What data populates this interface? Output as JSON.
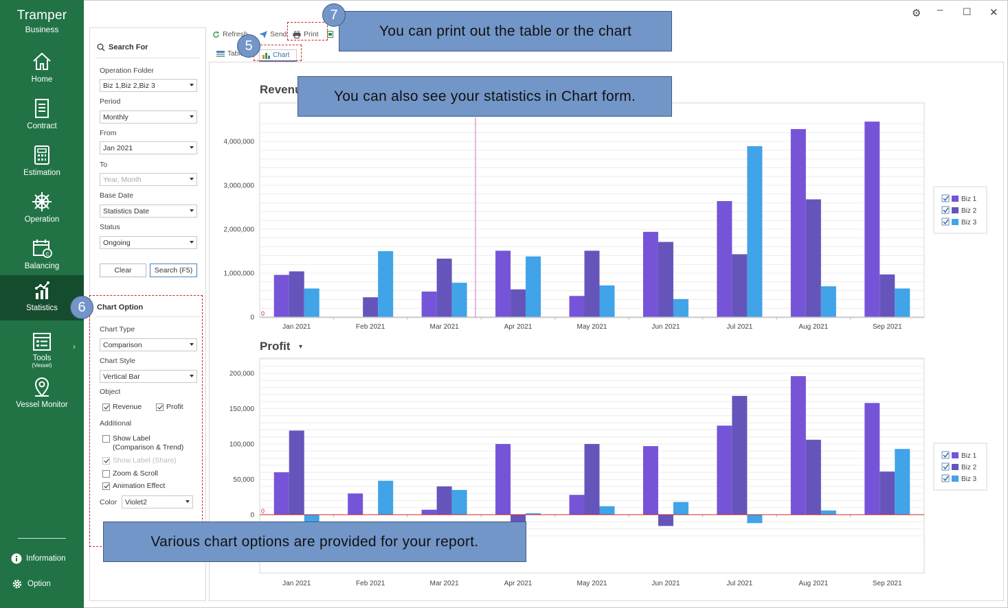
{
  "sidebar": {
    "brand_line1": "Tramper",
    "brand_line2": "Business",
    "items": [
      {
        "label": "Home",
        "icon": "home-icon"
      },
      {
        "label": "Contract",
        "icon": "document-icon"
      },
      {
        "label": "Estimation",
        "icon": "calculator-icon"
      },
      {
        "label": "Operation",
        "icon": "ship-wheel-icon"
      },
      {
        "label": "Balancing",
        "icon": "calendar-money-icon"
      },
      {
        "label": "Statistics",
        "icon": "statistics-icon",
        "active": true
      },
      {
        "label": "Tools",
        "sublabel": "(Vessel)",
        "icon": "tools-list-icon"
      },
      {
        "label": "Vessel Monitor",
        "icon": "map-pin-icon"
      }
    ],
    "information_label": "Information",
    "option_label": "Option"
  },
  "search": {
    "title": "Search For",
    "operation_folder_label": "Operation Folder",
    "operation_folder_value": "Biz 1,Biz 2,Biz 3",
    "period_label": "Period",
    "period_value": "Monthly",
    "from_label": "From",
    "from_value": "Jan 2021",
    "to_label": "To",
    "to_placeholder": "Year, Month",
    "base_date_label": "Base Date",
    "base_date_value": "Statistics Date",
    "status_label": "Status",
    "status_value": "Ongoing",
    "clear_label": "Clear",
    "search_label": "Search (F5)"
  },
  "chart_option": {
    "title": "Chart Option",
    "chart_type_label": "Chart Type",
    "chart_type_value": "Comparison",
    "chart_style_label": "Chart Style",
    "chart_style_value": "Vertical Bar",
    "object_label": "Object",
    "revenue_label": "Revenue",
    "profit_label": "Profit",
    "additional_label": "Additional",
    "show_label_line1": "Show Label",
    "show_label_line2": "(Comparison & Trend)",
    "show_label_share": "Show Label (Share)",
    "zoom_scroll_label": "Zoom & Scroll",
    "animation_label": "Animation Effect",
    "color_label": "Color",
    "color_value": "Violet2"
  },
  "toolbar": {
    "refresh_label": "Refresh",
    "send_label": "Send",
    "print_label": "Print",
    "tab_table_label": "Table",
    "tab_chart_label": "Chart"
  },
  "callouts": {
    "print_text": "You can print out the table or the chart",
    "chart_text": "You can also see your statistics in Chart form.",
    "options_text": "Various chart options are provided for your report.",
    "badge5": "5",
    "badge6": "6",
    "badge7": "7"
  },
  "colors": {
    "sidebar_bg": "#217346",
    "biz1": "#7654d8",
    "biz2": "#6555bb",
    "biz3": "#41a3e8",
    "callout_bg": "#7396c8"
  },
  "chart_data": [
    {
      "type": "bar",
      "title": "Revenu",
      "categories": [
        "Jan 2021",
        "Feb 2021",
        "Mar 2021",
        "Apr 2021",
        "May 2021",
        "Jun 2021",
        "Jul 2021",
        "Aug 2021",
        "Sep 2021"
      ],
      "series": [
        {
          "name": "Biz 1",
          "values": [
            960000,
            0,
            580000,
            1510000,
            480000,
            1940000,
            2640000,
            4280000,
            4450000
          ]
        },
        {
          "name": "Biz 2",
          "values": [
            1040000,
            450000,
            1330000,
            630000,
            1510000,
            1710000,
            1430000,
            2680000,
            970000
          ]
        },
        {
          "name": "Biz 3",
          "values": [
            650000,
            1500000,
            780000,
            1380000,
            720000,
            410000,
            3890000,
            700000,
            650000
          ]
        }
      ],
      "y_ticks": [
        "0",
        "1,000,000",
        "2,000,000",
        "3,000,000",
        "4,000,000"
      ],
      "ylim": [
        0,
        4500000
      ],
      "legend": "right",
      "grid": true
    },
    {
      "type": "bar",
      "title": "Profit",
      "categories": [
        "Jan 2021",
        "Feb 2021",
        "Mar 2021",
        "Apr 2021",
        "May 2021",
        "Jun 2021",
        "Jul 2021",
        "Aug 2021",
        "Sep 2021"
      ],
      "series": [
        {
          "name": "Biz 1",
          "values": [
            60000,
            30000,
            7000,
            100000,
            28000,
            97000,
            126000,
            196000,
            158000
          ]
        },
        {
          "name": "Biz 2",
          "values": [
            119000,
            0,
            40000,
            -10000,
            100000,
            -16000,
            168000,
            106000,
            61000
          ]
        },
        {
          "name": "Biz 3",
          "values": [
            -10000,
            48000,
            35000,
            2000,
            12000,
            18000,
            -12000,
            6000,
            93000
          ]
        }
      ],
      "y_ticks": [
        "0",
        "50,000",
        "100,000",
        "150,000",
        "200,000"
      ],
      "ylim": [
        -20000,
        200000
      ],
      "legend": "right",
      "grid": true
    }
  ]
}
